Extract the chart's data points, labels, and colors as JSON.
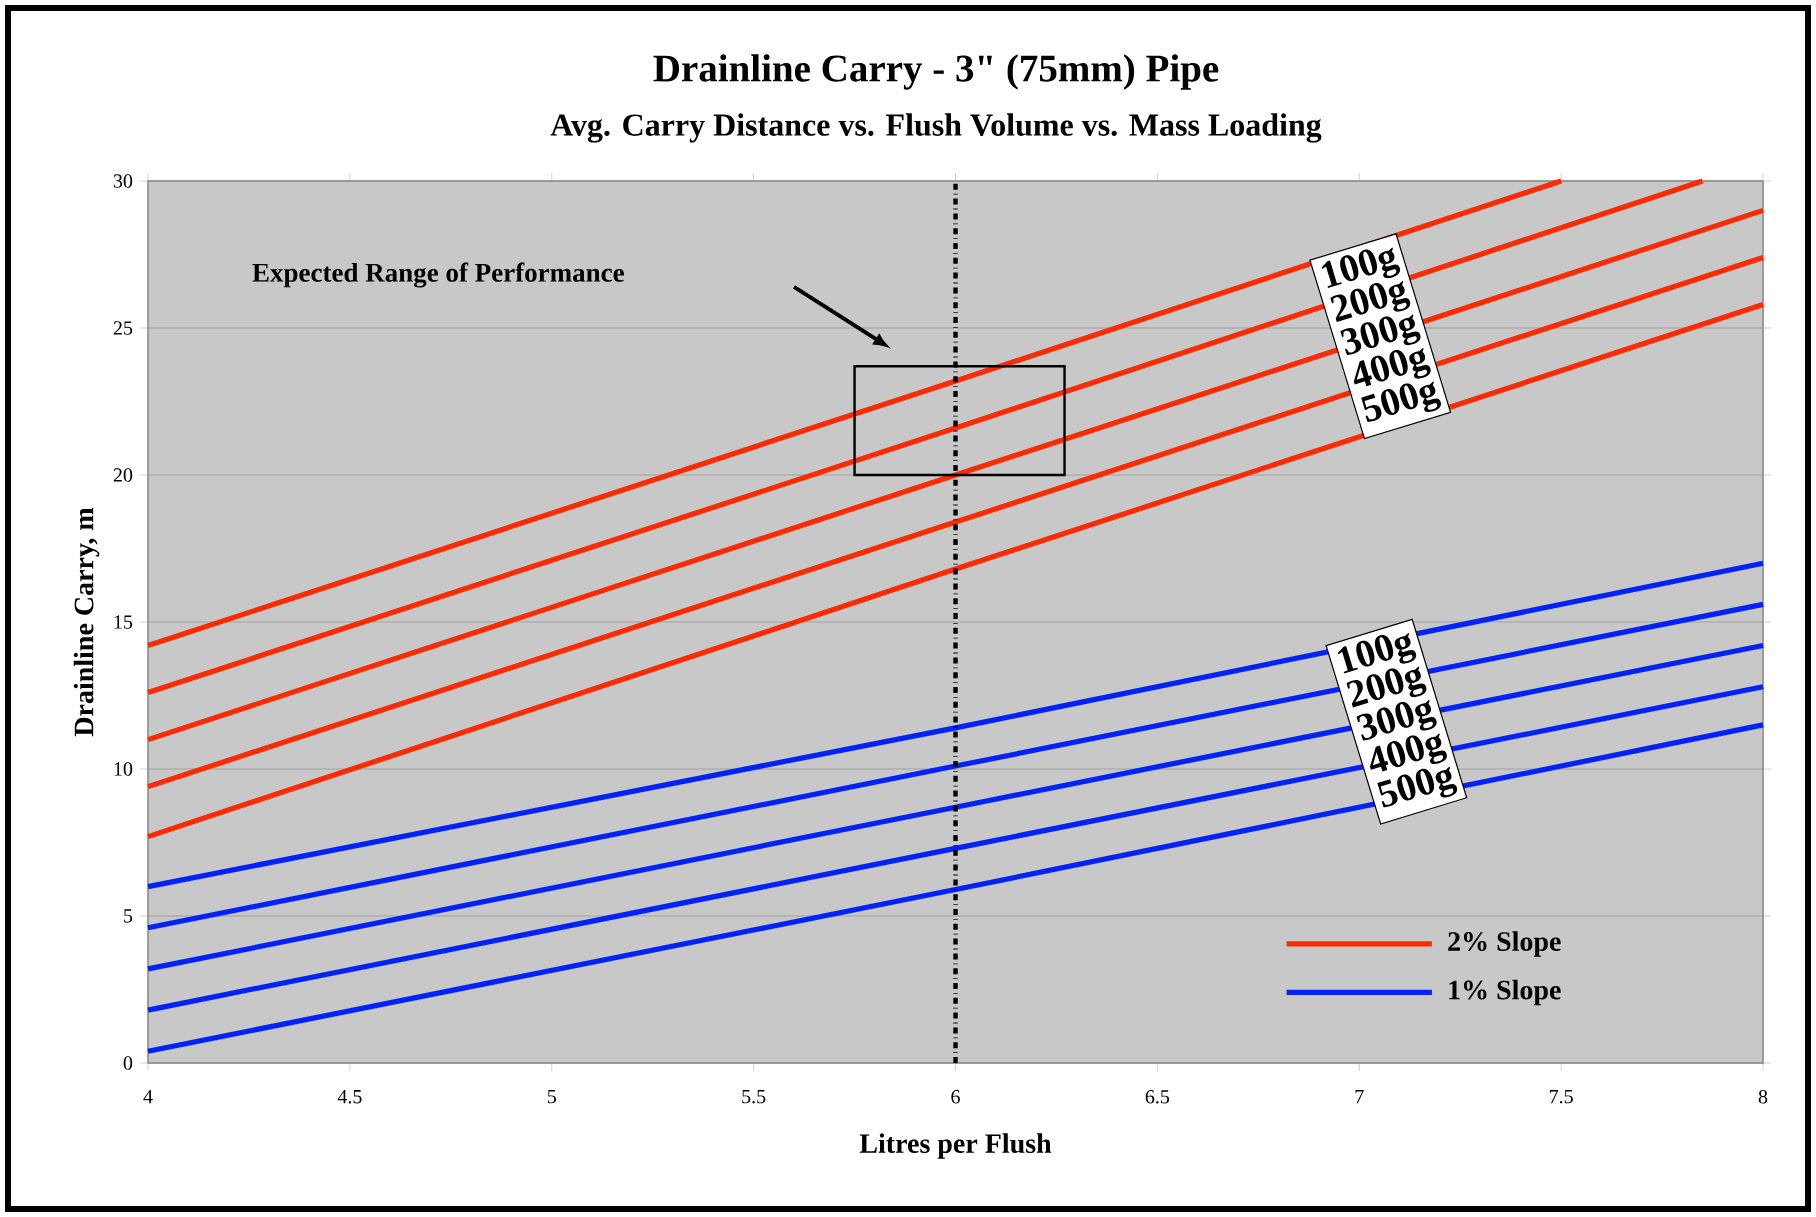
{
  "chart_data": {
    "type": "line",
    "title": "Drainline Carry - 3\" (75mm) Pipe",
    "subtitle": "Avg. Carry Distance vs. Flush Volume vs. Mass Loading",
    "xlabel": "Litres per Flush",
    "ylabel": "Drainline Carry, m",
    "xlim": [
      4,
      8
    ],
    "ylim": [
      0,
      30
    ],
    "xticks": [
      4,
      4.5,
      5,
      5.5,
      6,
      6.5,
      7,
      7.5,
      8
    ],
    "yticks": [
      0,
      5,
      10,
      15,
      20,
      25,
      30
    ],
    "grid": "y",
    "line_style": "solid",
    "series": [
      {
        "name": "100g",
        "color": "#ff2a00",
        "x": [
          4,
          6,
          7.5
        ],
        "values": [
          14.2,
          23.2,
          30
        ]
      },
      {
        "name": "200g",
        "color": "#ff2a00",
        "x": [
          4,
          6,
          7.85
        ],
        "values": [
          12.6,
          21.6,
          30
        ]
      },
      {
        "name": "300g",
        "color": "#ff2a00",
        "x": [
          4,
          6,
          8
        ],
        "values": [
          11.0,
          20.0,
          29.0
        ]
      },
      {
        "name": "400g",
        "color": "#ff2a00",
        "x": [
          4,
          6,
          8
        ],
        "values": [
          9.4,
          18.4,
          27.4
        ]
      },
      {
        "name": "500g",
        "color": "#ff2a00",
        "x": [
          4,
          6,
          8
        ],
        "values": [
          7.7,
          16.8,
          25.8
        ]
      },
      {
        "name": "100g",
        "color": "#0022ff",
        "x": [
          4,
          6,
          8
        ],
        "values": [
          6.0,
          11.4,
          17.0
        ]
      },
      {
        "name": "200g",
        "color": "#0022ff",
        "x": [
          4,
          6,
          8
        ],
        "values": [
          4.6,
          10.1,
          15.6
        ]
      },
      {
        "name": "300g",
        "color": "#0022ff",
        "x": [
          4,
          6,
          8
        ],
        "values": [
          3.2,
          8.7,
          14.2
        ]
      },
      {
        "name": "400g",
        "color": "#0022ff",
        "x": [
          4,
          6,
          8
        ],
        "values": [
          1.8,
          7.3,
          12.8
        ]
      },
      {
        "name": "500g",
        "color": "#0022ff",
        "x": [
          4,
          6,
          8
        ],
        "values": [
          0.4,
          5.9,
          11.5
        ]
      }
    ],
    "ref_lines": [
      {
        "axis": "x",
        "value": 6,
        "color": "#000000",
        "line_style": "dashdot"
      }
    ],
    "annotations": [
      "Expected Range of Performance",
      "2% Slope",
      "1% Slope"
    ]
  }
}
